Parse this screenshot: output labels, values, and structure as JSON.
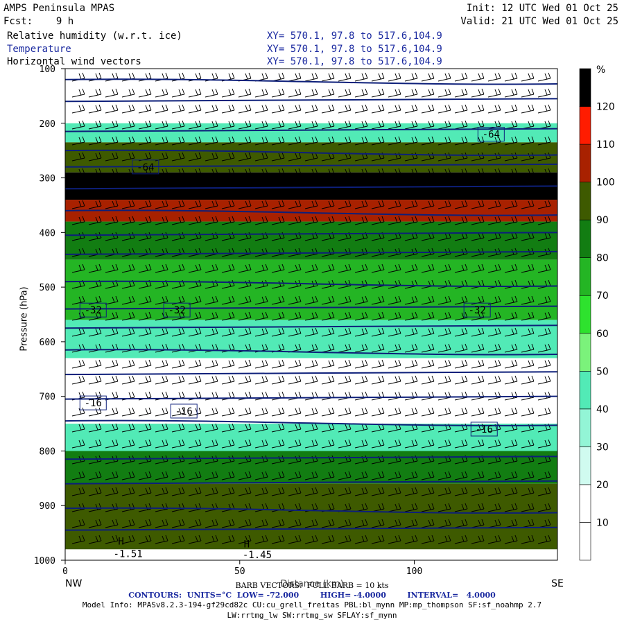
{
  "header": {
    "title": "AMPS Peninsula MPAS",
    "fcst": "Fcst:    9 h",
    "init": "Init: 12 UTC Wed 01 Oct 25",
    "valid": "Valid: 21 UTC Wed 01 Oct 25",
    "fields": [
      {
        "label": "Relative humidity (w.r.t. ice)",
        "xy": "XY= 570.1, 97.8 to 517.6,104.9"
      },
      {
        "label": "Temperature",
        "xy": "XY= 570.1, 97.8 to 517.6,104.9"
      },
      {
        "label": "Horizontal wind vectors",
        "xy": "XY= 570.1, 97.8 to 517.6,104.9"
      }
    ]
  },
  "colors": {
    "rh_levels": [
      "#ffffff",
      "#ffffff",
      "#d0fbf0",
      "#93f5d6",
      "#52eab6",
      "#7bf27b",
      "#2ee22e",
      "#24b524",
      "#127d12",
      "#3e5a00",
      "#a82100",
      "#ff1c00"
    ],
    "contour": "#0d1f7a",
    "text_blue": "#1b2aa0"
  },
  "chart_data": {
    "type": "heatmap",
    "x_range": [
      0,
      141
    ],
    "y_range": [
      100,
      1000
    ],
    "x_ticks": [
      0,
      50,
      100
    ],
    "y_ticks": [
      100,
      200,
      300,
      400,
      500,
      600,
      700,
      800,
      900,
      1000
    ],
    "ylabel": "Pressure (hPa)",
    "xlabel": "Distance (km)",
    "left_label": "NW",
    "right_label": "SE",
    "colorbar": {
      "unit": "%",
      "bounds": [
        0,
        10,
        20,
        30,
        40,
        50,
        60,
        70,
        80,
        90,
        100,
        110,
        120,
        130
      ],
      "labels": [
        10,
        20,
        30,
        40,
        50,
        60,
        70,
        80,
        90,
        100,
        110,
        120
      ]
    },
    "rh_bands": [
      {
        "p_top": 100,
        "p_bot": 200,
        "rh": 5
      },
      {
        "p_top": 200,
        "p_bot": 235,
        "rh": 45
      },
      {
        "p_top": 235,
        "p_bot": 290,
        "rh": 95
      },
      {
        "p_top": 290,
        "p_bot": 340,
        "rh": 125
      },
      {
        "p_top": 340,
        "p_bot": 380,
        "rh": 105
      },
      {
        "p_top": 380,
        "p_bot": 450,
        "rh": 85
      },
      {
        "p_top": 450,
        "p_bot": 560,
        "rh": 75
      },
      {
        "p_top": 560,
        "p_bot": 630,
        "rh": 45
      },
      {
        "p_top": 630,
        "p_bot": 750,
        "rh": 5
      },
      {
        "p_top": 750,
        "p_bot": 800,
        "rh": 45
      },
      {
        "p_top": 800,
        "p_bot": 860,
        "rh": 85
      },
      {
        "p_top": 860,
        "p_bot": 980,
        "rh": 95
      }
    ],
    "contour_labels": [
      {
        "text": "-64",
        "x": 122,
        "p": 220
      },
      {
        "text": "-64",
        "x": 23,
        "p": 280
      },
      {
        "text": "-32",
        "x": 8,
        "p": 542
      },
      {
        "text": "-32",
        "x": 32,
        "p": 542
      },
      {
        "text": "-32",
        "x": 118,
        "p": 542
      },
      {
        "text": "-16",
        "x": 8,
        "p": 712
      },
      {
        "text": "-16",
        "x": 34,
        "p": 727
      },
      {
        "text": "-16",
        "x": 120,
        "p": 760
      }
    ],
    "surface_labels": [
      {
        "text": "H",
        "x": 16,
        "p": 965
      },
      {
        "text": "-1.51",
        "x": 18,
        "p": 988
      },
      {
        "text": "H",
        "x": 52,
        "p": 970
      },
      {
        "text": "-1.45",
        "x": 55,
        "p": 990
      }
    ]
  },
  "footer": {
    "barb_line": "BARB VECTORS:  FULL BARB = 10 kts",
    "contours_line": "CONTOURS:  UNITS=°C  LOW= -72.000        HIGH= -4.0000        INTERVAL=   4.0000",
    "model_info": "Model Info: MPASv8.2.3-194-gf29cd82c CU:cu_grell_freitas PBL:bl_mynn MP:mp_thompson SF:sf_noahmp 2.7",
    "model_info2": "LW:rrtmg_lw SW:rrtmg_sw SFLAY:sf_mynn"
  }
}
